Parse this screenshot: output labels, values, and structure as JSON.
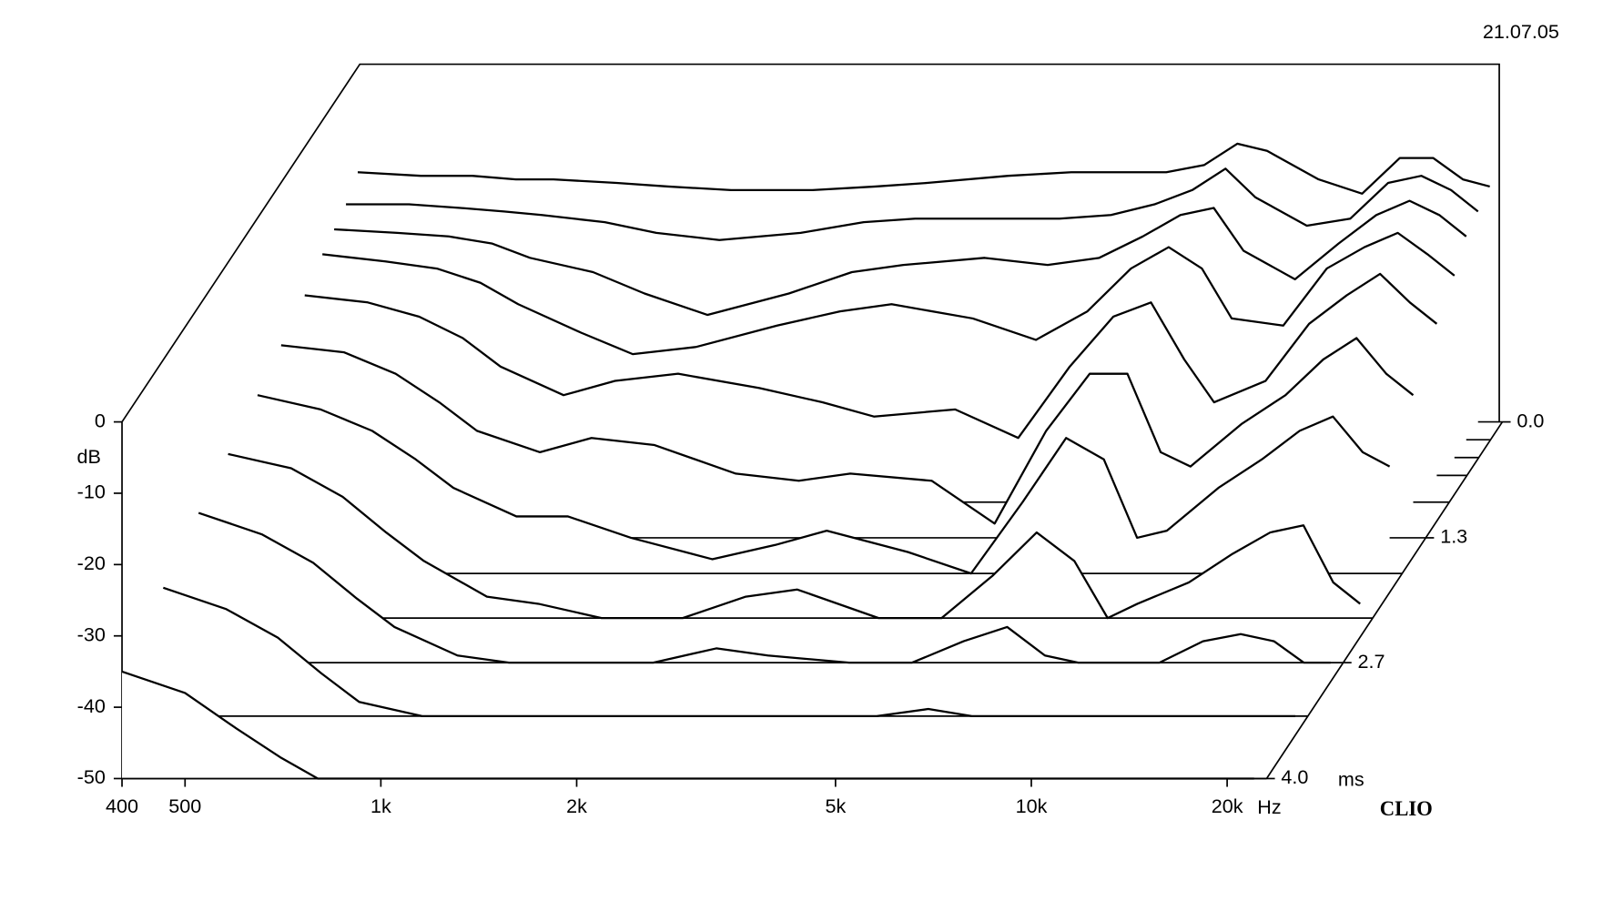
{
  "chart_data": {
    "type": "waterfall",
    "date": "21.07.05",
    "brand": "CLIO",
    "x_label": "Hz",
    "y_label": "dB",
    "z_label": "ms",
    "log_x": true,
    "color": "#000000",
    "xlim": [
      400,
      23000
    ],
    "xticks": [
      400,
      500,
      {
        "value": 1000,
        "label": "1k"
      },
      {
        "value": 2000,
        "label": "2k"
      },
      {
        "value": 5000,
        "label": "5k"
      },
      {
        "value": 10000,
        "label": "10k"
      },
      {
        "value": 20000,
        "label": "20k"
      }
    ],
    "ylim": [
      -50,
      0
    ],
    "yticks": [
      0,
      -10,
      -20,
      -30,
      -40,
      -50
    ],
    "zlim": [
      0,
      4
    ],
    "zticks": [
      {
        "value": 0,
        "label": "0.0"
      },
      1.3,
      2.7,
      {
        "value": 4,
        "label": "4.0"
      }
    ],
    "x": [
      400,
      500,
      600,
      700,
      800,
      1000,
      1200,
      1500,
      2000,
      2500,
      3000,
      4000,
      5000,
      6000,
      7000,
      8000,
      9000,
      10000,
      12000,
      14000,
      16000,
      18000,
      20000,
      22000
    ],
    "series": [
      {
        "z": 0,
        "values": [
          -15,
          -15.5,
          -15.5,
          -16,
          -16,
          -16.5,
          -17,
          -17.5,
          -17.5,
          -17,
          -16.5,
          -15.5,
          -15,
          -15,
          -15,
          -14,
          -11,
          -12,
          -16,
          -18,
          -13,
          -13,
          -16,
          -17
        ]
      },
      {
        "z": 0.2,
        "values": [
          -17,
          -17,
          -17.5,
          -18,
          -18.5,
          -19.5,
          -21,
          -22,
          -21,
          -19.5,
          -19,
          -19,
          -19,
          -18.5,
          -17,
          -15,
          -12,
          -16,
          -20,
          -19,
          -14,
          -13,
          -15,
          -18
        ]
      },
      {
        "z": 0.4,
        "values": [
          -18,
          -18.5,
          -19,
          -20,
          -22,
          -24,
          -27,
          -30,
          -27,
          -24,
          -23,
          -22,
          -23,
          -22,
          -19,
          -16,
          -15,
          -21,
          -25,
          -20,
          -16,
          -14,
          -16,
          -19
        ]
      },
      {
        "z": 0.6,
        "values": [
          -19,
          -20,
          -21,
          -23,
          -26,
          -30,
          -33,
          -32,
          -29,
          -27,
          -26,
          -28,
          -31,
          -27,
          -21,
          -18,
          -21,
          -28,
          -29,
          -21,
          -18,
          -16,
          -19,
          -22
        ]
      },
      {
        "z": 0.9,
        "values": [
          -21,
          -22,
          -24,
          -27,
          -31,
          -35,
          -33,
          -32,
          -34,
          -36,
          -38,
          -37,
          -41,
          -31,
          -24,
          -22,
          -30,
          -36,
          -33,
          -25,
          -21,
          -18,
          -22,
          -25
        ]
      },
      {
        "z": 1.3,
        "values": [
          -23,
          -24,
          -27,
          -31,
          -35,
          -38,
          -36,
          -37,
          -41,
          -42,
          -41,
          -42,
          -48,
          -35,
          -27,
          -27,
          -38,
          -40,
          -34,
          -30,
          -25,
          -22,
          -27,
          -30
        ]
      },
      {
        "z": 1.7,
        "values": [
          -25,
          -27,
          -30,
          -34,
          -38,
          -42,
          -42,
          -45,
          -48,
          -46,
          -44,
          -47,
          -50,
          -40,
          -31,
          -34,
          -45,
          -44,
          -38,
          -34,
          -30,
          -28,
          -33,
          -35
        ]
      },
      {
        "z": 2.2,
        "values": [
          -27,
          -29,
          -33,
          -38,
          -42,
          -47,
          -48,
          -50,
          -50,
          -47,
          -46,
          -50,
          -50,
          -44,
          -38,
          -42,
          -50,
          -48,
          -45,
          -41,
          -38,
          -37,
          -45,
          -48
        ]
      },
      {
        "z": 2.7,
        "values": [
          -29,
          -32,
          -36,
          -41,
          -45,
          -49,
          -50,
          -50,
          -50,
          -48,
          -49,
          -50,
          -50,
          -47,
          -45,
          -49,
          -50,
          -50,
          -50,
          -47,
          -46,
          -47,
          -50,
          -50
        ]
      },
      {
        "z": 3.3,
        "values": [
          -32,
          -35,
          -39,
          -44,
          -48,
          -50,
          -50,
          -50,
          -50,
          -50,
          -50,
          -50,
          -50,
          -49,
          -50,
          -50,
          -50,
          -50,
          -50,
          -50,
          -50,
          -50,
          -50,
          -50
        ]
      },
      {
        "z": 4,
        "values": [
          -35,
          -38,
          -43,
          -47,
          -50,
          -50,
          -50,
          -50,
          -50,
          -50,
          -50,
          -50,
          -50,
          -50,
          -50,
          -50,
          -50,
          -50,
          -50,
          -50,
          -50,
          -50,
          -50,
          -50
        ]
      }
    ]
  }
}
